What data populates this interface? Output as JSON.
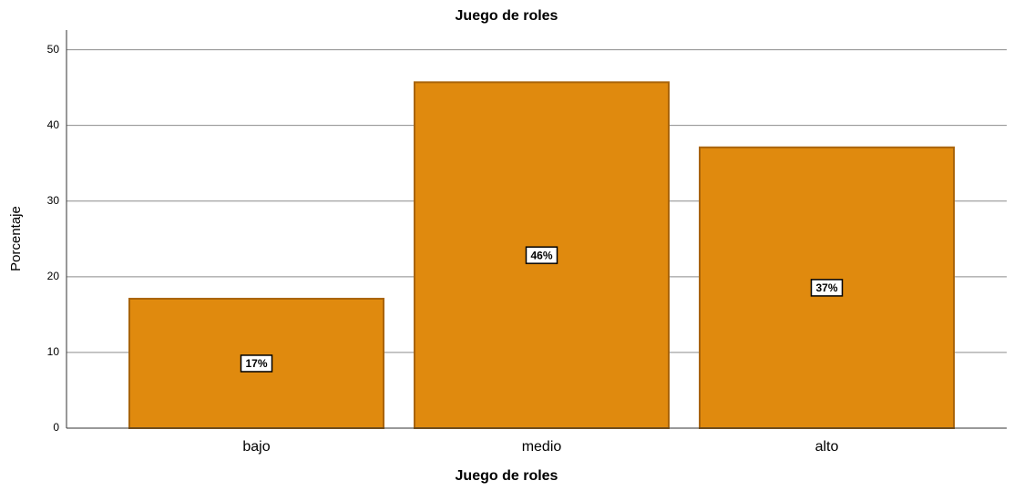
{
  "chart_data": {
    "type": "bar",
    "title": "Juego de roles",
    "x_label": "Juego de roles",
    "y_label": "Porcentaje",
    "categories": [
      "bajo",
      "medio",
      "alto"
    ],
    "values": [
      17.1,
      45.7,
      37.1
    ],
    "value_labels": [
      "17%",
      "46%",
      "37%"
    ],
    "color": "#e08a0e",
    "ylim": [
      0,
      52.6
    ],
    "yticks": [
      0,
      10,
      20,
      30,
      40,
      50
    ],
    "grid": true
  }
}
